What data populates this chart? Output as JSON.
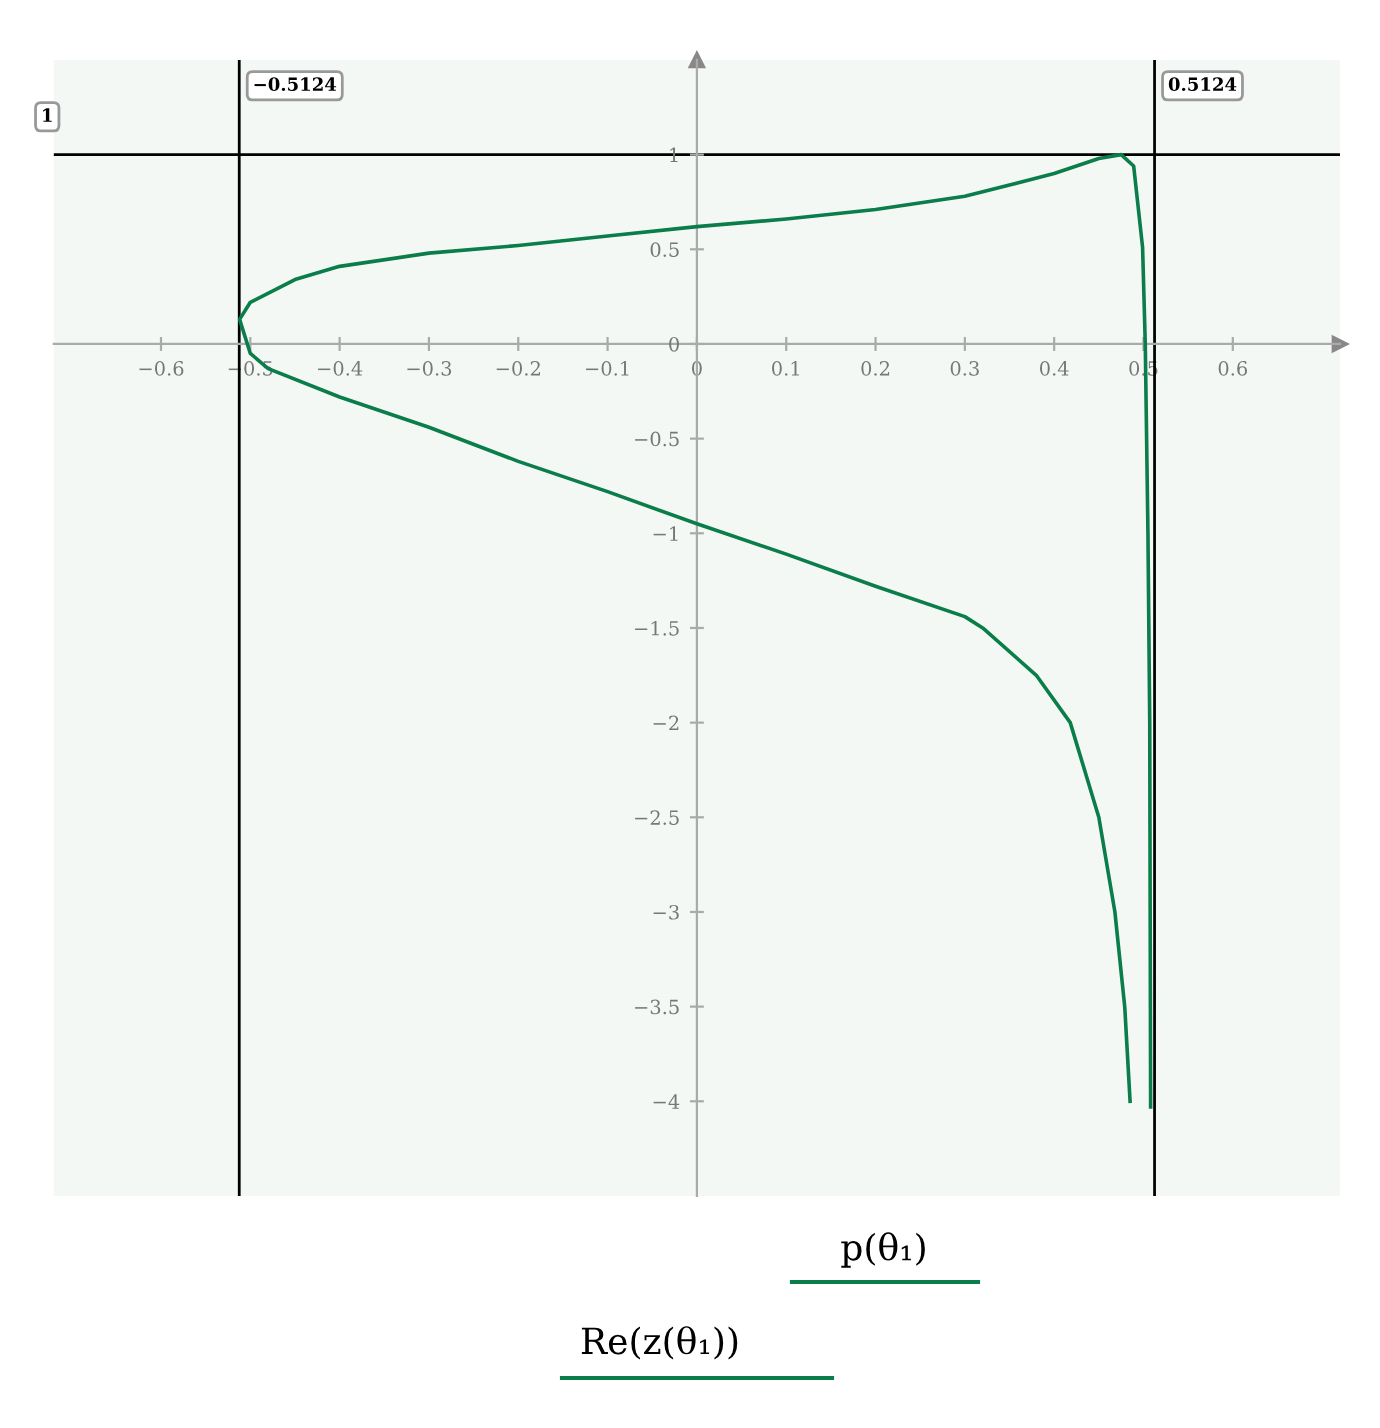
{
  "chart_data": {
    "type": "line",
    "annotations": [
      "p(θ₁)",
      "Re(z(θ₁))"
    ],
    "xlim": [
      -0.72,
      0.72
    ],
    "ylim": [
      -4.5,
      1.5
    ],
    "xticks": [
      -0.6,
      -0.5,
      -0.4,
      -0.3,
      -0.2,
      -0.1,
      0,
      0.1,
      0.2,
      0.3,
      0.4,
      0.5,
      0.6
    ],
    "yticks": [
      -4,
      -3.5,
      -3,
      -2.5,
      -2,
      -1.5,
      -1,
      -0.5,
      0,
      0.5,
      1
    ],
    "grid": false,
    "marker": "none",
    "line_style": "solid",
    "series": [
      {
        "color": "#0b7d4a",
        "x": [
          0.485,
          0.479,
          0.468,
          0.45,
          0.418,
          0.38,
          0.32,
          0.3,
          0.2,
          0.1,
          0,
          -0.1,
          -0.2,
          -0.3,
          -0.4,
          -0.48,
          -0.5,
          -0.512,
          -0.5,
          -0.45,
          -0.4,
          -0.3,
          -0.2,
          -0.1,
          0,
          0.1,
          0.2,
          0.3,
          0.35,
          0.4,
          0.45,
          0.475,
          0.489,
          0.499,
          0.502,
          0.505,
          0.507,
          0.508
        ],
        "values": [
          -4.0,
          -3.5,
          -3.0,
          -2.5,
          -2.0,
          -1.75,
          -1.5,
          -1.44,
          -1.28,
          -1.11,
          -0.95,
          -0.78,
          -0.62,
          -0.44,
          -0.28,
          -0.13,
          -0.05,
          0.13,
          0.22,
          0.34,
          0.41,
          0.48,
          0.52,
          0.57,
          0.62,
          0.66,
          0.71,
          0.78,
          0.84,
          0.9,
          0.98,
          1.0,
          0.94,
          0.51,
          0.0,
          -1.0,
          -2.0,
          -4.03
        ]
      }
    ],
    "ref_lines": [
      {
        "axis": "x",
        "value": -0.5124,
        "label": "−0.5124",
        "color": "#000000"
      },
      {
        "axis": "x",
        "value": 0.5124,
        "label": "0.5124",
        "color": "#000000"
      },
      {
        "axis": "y",
        "value": 1,
        "label": "1",
        "color": "#000000"
      }
    ]
  }
}
